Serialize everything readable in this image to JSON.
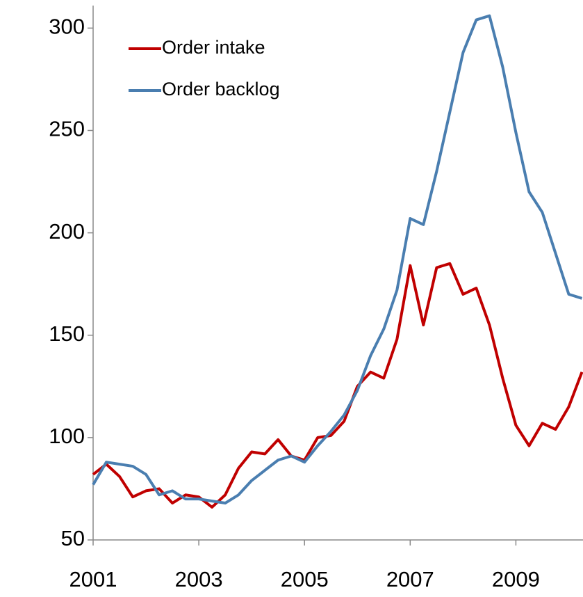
{
  "chart_data": {
    "type": "line",
    "x": [
      2001,
      2001.25,
      2001.5,
      2001.75,
      2002,
      2002.25,
      2002.5,
      2002.75,
      2003,
      2003.25,
      2003.5,
      2003.75,
      2004,
      2004.25,
      2004.5,
      2004.75,
      2005,
      2005.25,
      2005.5,
      2005.75,
      2006,
      2006.25,
      2006.5,
      2006.75,
      2007,
      2007.25,
      2007.5,
      2007.75,
      2008,
      2008.25,
      2008.5,
      2008.75,
      2009,
      2009.25,
      2009.5,
      2009.75,
      2010,
      2010.25
    ],
    "series": [
      {
        "name": "Order intake",
        "color": "#c00000",
        "values": [
          82,
          87,
          81,
          71,
          74,
          75,
          68,
          72,
          71,
          66,
          72,
          85,
          93,
          92,
          99,
          91,
          89,
          100,
          101,
          108,
          125,
          132,
          129,
          148,
          184,
          155,
          183,
          185,
          170,
          173,
          155,
          129,
          106,
          96,
          107,
          104,
          115,
          132
        ]
      },
      {
        "name": "Order backlog",
        "color": "#4a7eb0",
        "values": [
          77,
          88,
          87,
          86,
          82,
          72,
          74,
          70,
          70,
          69,
          68,
          72,
          79,
          84,
          89,
          91,
          88,
          96,
          103,
          111,
          123,
          140,
          153,
          172,
          207,
          204,
          230,
          259,
          288,
          304,
          306,
          281,
          249,
          220,
          210,
          190,
          170,
          168
        ]
      }
    ],
    "xlim": [
      2001,
      2010.27
    ],
    "xticks": [
      2001,
      2003,
      2005,
      2007,
      2009
    ],
    "ylim": [
      50,
      311
    ],
    "yticks": [
      50,
      100,
      150,
      200,
      250,
      300
    ],
    "legend": "upper left"
  }
}
